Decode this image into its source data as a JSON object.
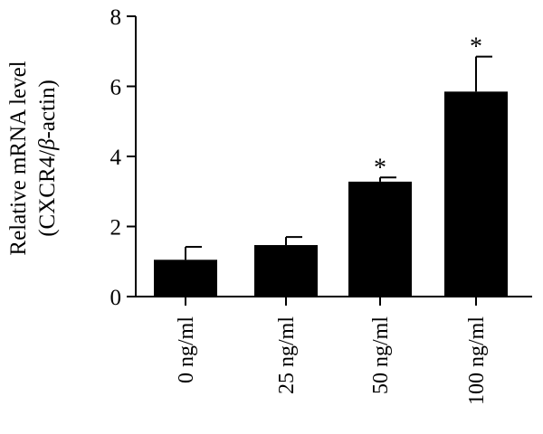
{
  "chart_data": {
    "type": "bar",
    "title": "",
    "xlabel": "",
    "ylabel_line1": "Relative mRNA level",
    "ylabel_line2_prefix": "(CXCR4/",
    "ylabel_line2_symbol": "β",
    "ylabel_line2_suffix": "-actin)",
    "ylim": [
      0,
      8
    ],
    "yticks": [
      0,
      2,
      4,
      6,
      8
    ],
    "categories": [
      "0 ng/ml",
      "25 ng/ml",
      "50 ng/ml",
      "100 ng/ml"
    ],
    "series": [
      {
        "values": [
          1.05,
          1.47,
          3.28,
          5.85
        ],
        "errors": [
          0.37,
          0.23,
          0.12,
          1.0
        ],
        "significance": [
          "",
          "",
          "*",
          "*"
        ]
      }
    ],
    "bar_color": "#000000",
    "grid": false,
    "legend": "none"
  }
}
